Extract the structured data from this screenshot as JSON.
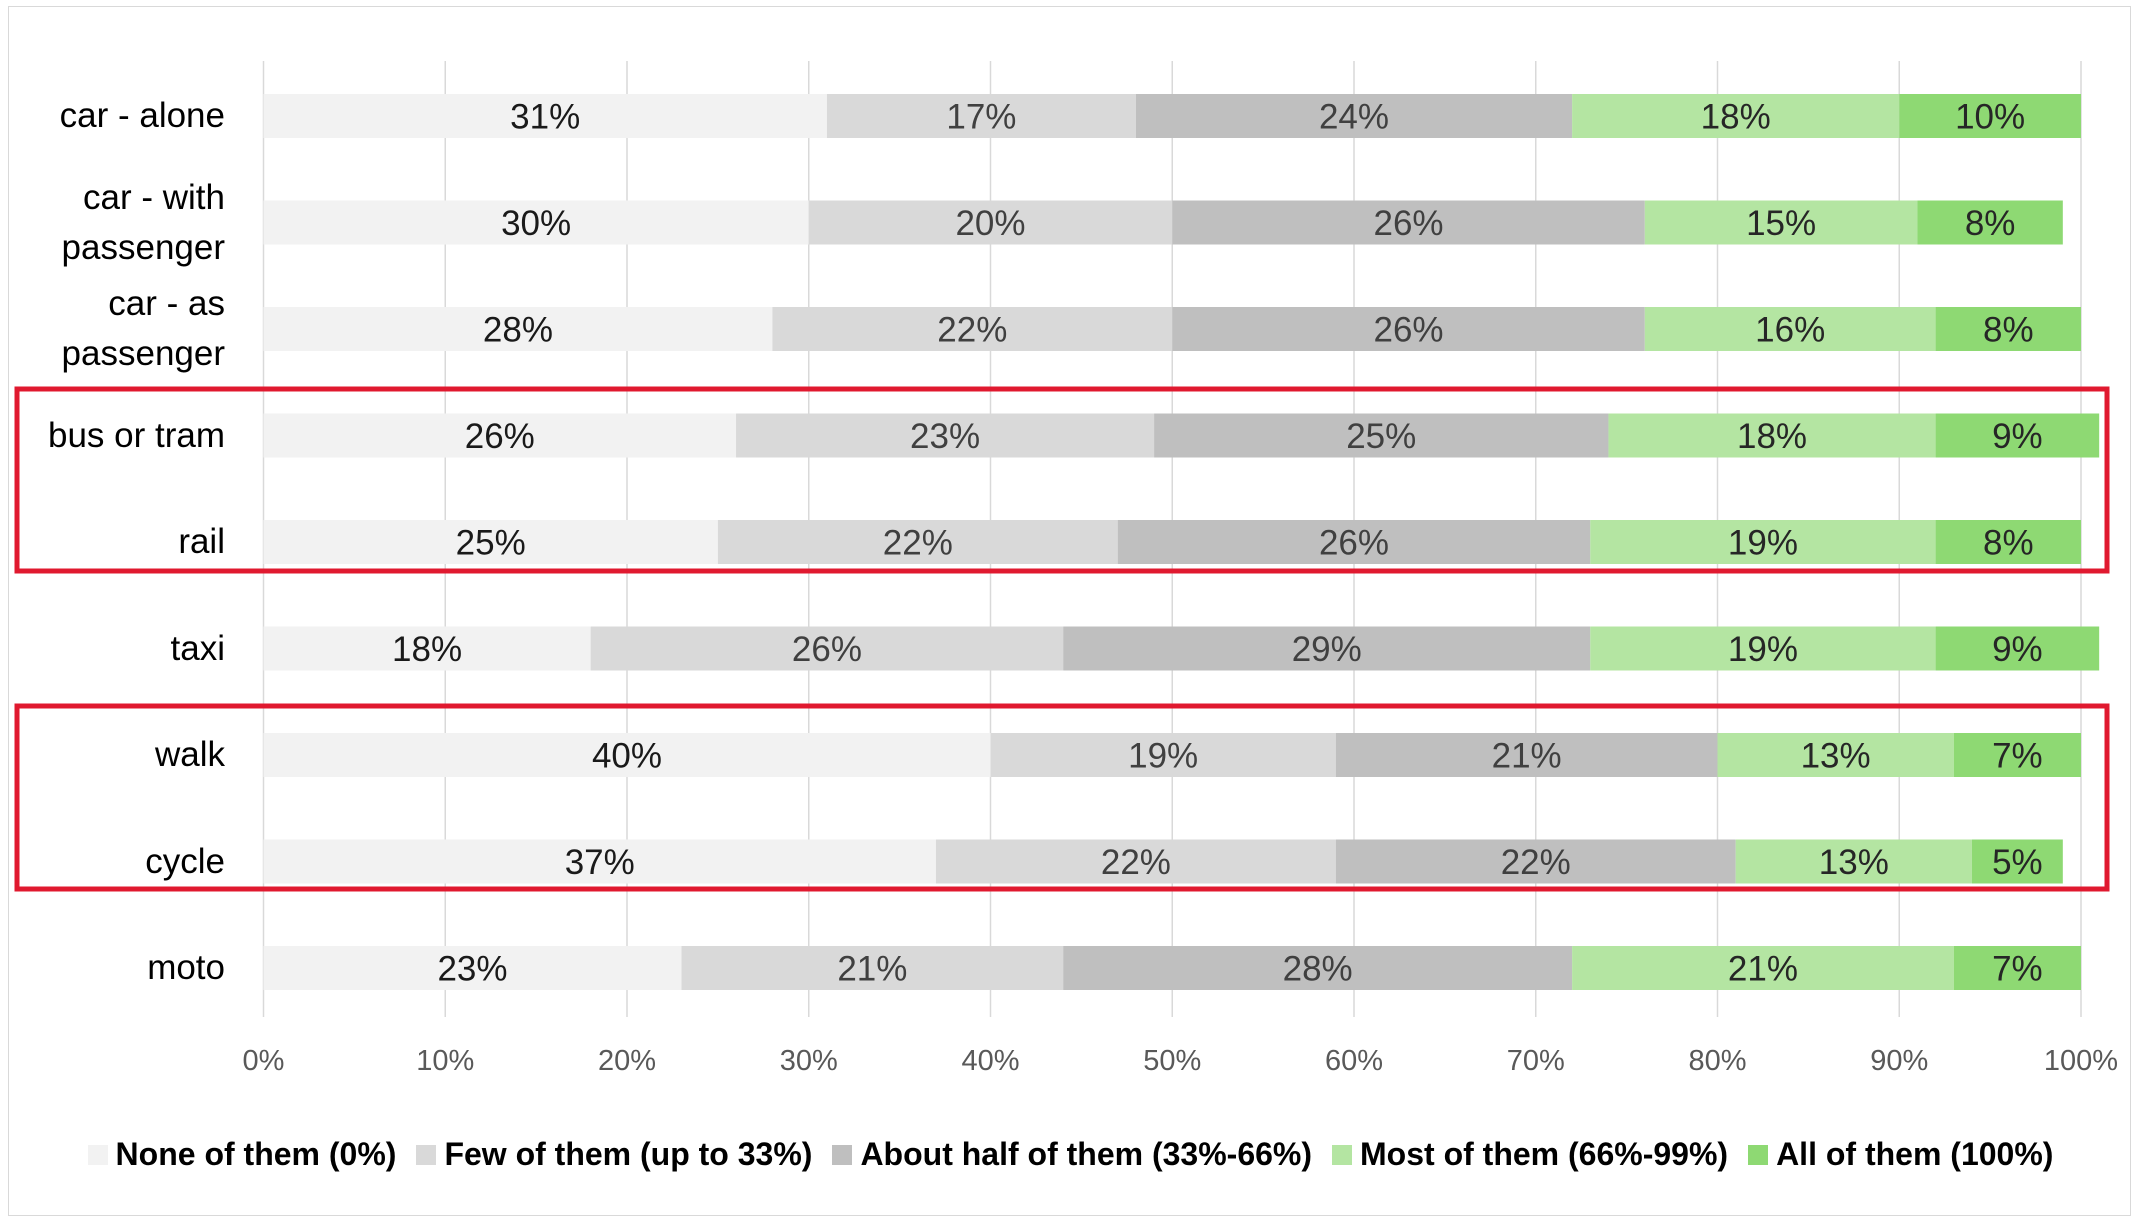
{
  "chart_data": {
    "type": "stacked-bar-horizontal",
    "categories": [
      "car - alone",
      "car - with passenger",
      "car - as passenger",
      "bus or tram",
      "rail",
      "taxi",
      "walk",
      "cycle",
      "moto"
    ],
    "series": [
      {
        "name": "None of them (0%)",
        "color": "#f2f2f2",
        "values": [
          31,
          30,
          28,
          26,
          25,
          18,
          40,
          37,
          23
        ],
        "value_labels": [
          "31%",
          "30%",
          "28%",
          "26%",
          "25%",
          "18%",
          "40%",
          "37%",
          "23%"
        ]
      },
      {
        "name": "Few of them (up to 33%)",
        "color": "#d9d9d9",
        "values": [
          17,
          20,
          22,
          23,
          22,
          26,
          19,
          22,
          21
        ],
        "value_labels": [
          "17%",
          "20%",
          "22%",
          "23%",
          "22%",
          "26%",
          "19%",
          "22%",
          "21%"
        ]
      },
      {
        "name": "About half of them (33%-66%)",
        "color": "#bfbfbf",
        "values": [
          24,
          26,
          26,
          25,
          26,
          29,
          21,
          22,
          28
        ],
        "value_labels": [
          "24%",
          "26%",
          "26%",
          "25%",
          "26%",
          "29%",
          "21%",
          "22%",
          "28%"
        ]
      },
      {
        "name": "Most of them (66%-99%)",
        "color": "#b4e5a2",
        "values": [
          18,
          15,
          16,
          18,
          19,
          19,
          13,
          13,
          21
        ],
        "value_labels": [
          "18%",
          "15%",
          "16%",
          "18%",
          "19%",
          "19%",
          "13%",
          "13%",
          "21%"
        ]
      },
      {
        "name": "All of them (100%)",
        "color": "#8ed973",
        "values": [
          10,
          8,
          8,
          9,
          8,
          9,
          7,
          5,
          7
        ],
        "value_labels": [
          "10%",
          "8%",
          "8%",
          "9%",
          "8%",
          "9%",
          "7%",
          "5%",
          "7%"
        ]
      }
    ],
    "xlim": [
      0,
      100
    ],
    "xticks": [
      {
        "value": 0,
        "label": "0%"
      },
      {
        "value": 10,
        "label": "10%"
      },
      {
        "value": 20,
        "label": "20%"
      },
      {
        "value": 30,
        "label": "30%"
      },
      {
        "value": 40,
        "label": "40%"
      },
      {
        "value": 50,
        "label": "50%"
      },
      {
        "value": 60,
        "label": "60%"
      },
      {
        "value": 70,
        "label": "70%"
      },
      {
        "value": 80,
        "label": "80%"
      },
      {
        "value": 90,
        "label": "90%"
      },
      {
        "value": 100,
        "label": "100%"
      }
    ],
    "grid": true,
    "legend": "bottom"
  }
}
